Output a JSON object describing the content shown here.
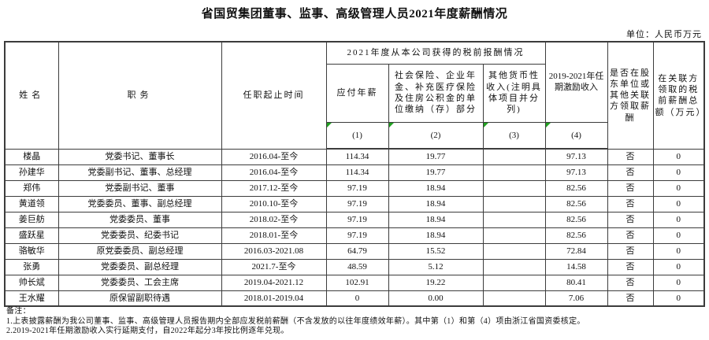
{
  "title": "省国贸集团董事、监事、高级管理人员2021年度薪酬情况",
  "unit_label": "单位：人民币万元",
  "table": {
    "headers": {
      "name": "姓名",
      "position": "职务",
      "term": "任职起止时间",
      "remuneration_group": "2021年度从本公司获得的税前报酬情况",
      "payable_salary": "应付年薪",
      "social_insurance": "社会保险、企业年金、补充医疗保险及住房公积金的单位缴纳（存）部分",
      "other_monetary": "其他货币性收入(注明具体项目并分列)",
      "term_incentive": "2019-2021年任期激励收入",
      "shareholder_pay": "是否在股东单位或其他关联方领取薪酬",
      "related_party_total": "在关联方领取的税前薪酬总额（万元）",
      "col_numbers": [
        "(1)",
        "(2)",
        "(3)",
        "(4)"
      ]
    },
    "rows": [
      [
        "楼晶",
        "党委书记、董事长",
        "2016.04-至今",
        "114.34",
        "19.77",
        "",
        "97.13",
        "否",
        "0"
      ],
      [
        "孙建华",
        "党委副书记、董事、总经理",
        "2016.04-至今",
        "114.34",
        "19.77",
        "",
        "97.13",
        "否",
        "0"
      ],
      [
        "郑伟",
        "党委副书记、董事",
        "2017.12-至今",
        "97.19",
        "18.94",
        "",
        "82.56",
        "否",
        "0"
      ],
      [
        "黄道领",
        "党委委员、董事、副总经理",
        "2010.10-至今",
        "97.19",
        "18.94",
        "",
        "82.56",
        "否",
        "0"
      ],
      [
        "姜巨舫",
        "党委委员、董事",
        "2018.02-至今",
        "97.19",
        "18.94",
        "",
        "82.56",
        "否",
        "0"
      ],
      [
        "盛跃星",
        "党委委员、纪委书记",
        "2018.01-至今",
        "97.19",
        "18.94",
        "",
        "82.56",
        "否",
        "0"
      ],
      [
        "骆敏华",
        "原党委委员、副总经理",
        "2016.03-2021.08",
        "64.79",
        "15.52",
        "",
        "72.84",
        "否",
        "0"
      ],
      [
        "张勇",
        "党委委员、副总经理",
        "2021.7-至今",
        "48.59",
        "5.12",
        "",
        "14.58",
        "否",
        "0"
      ],
      [
        "帅长斌",
        "党委委员、工会主席",
        "2019.04-2021.12",
        "102.91",
        "19.22",
        "",
        "80.41",
        "否",
        "0"
      ],
      [
        "王水耀",
        "原保留副职待遇",
        "2018.01-2019.04",
        "0",
        "0.00",
        "",
        "7.06",
        "否",
        "0"
      ]
    ]
  },
  "notes": {
    "label": "备注：",
    "items": [
      "1.上表披露薪酬为我公司董事、监事、高级管理人员报告期内全部应发税前薪酬（不含发放的以往年度绩效年薪）。其中第（1）和第（4）项由浙江省国资委核定。",
      "2.2019-2021年任期激励收入实行延期支付，自2022年起分3年按比例逐年兑现。"
    ]
  },
  "colors": {
    "border": "#3c3c3c",
    "text": "#111111",
    "flag_green": "#21a121",
    "background": "#ffffff"
  }
}
